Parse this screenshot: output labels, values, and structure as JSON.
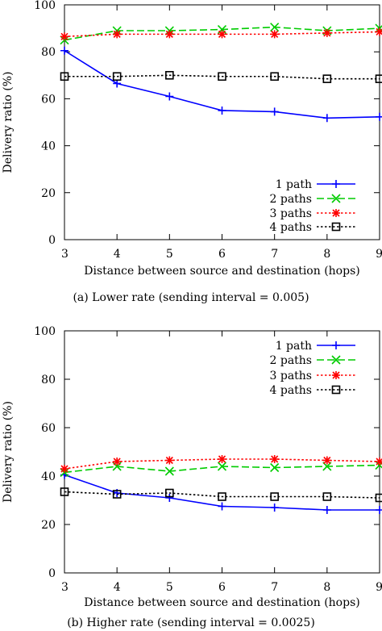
{
  "chart_data": [
    {
      "type": "line",
      "caption": "(a)  Lower rate (sending interval = 0.005)",
      "xlabel": "Distance between source and destination (hops)",
      "ylabel": "Delivery ratio (%)",
      "xlim": [
        3,
        9
      ],
      "ylim": [
        0,
        100
      ],
      "xticks": [
        3,
        4,
        5,
        6,
        7,
        8,
        9
      ],
      "yticks": [
        0,
        20,
        40,
        60,
        80,
        100
      ],
      "grid": false,
      "legend_position": "bottom-right",
      "x": [
        3,
        4,
        5,
        6,
        7,
        8,
        9
      ],
      "series": [
        {
          "name": "1 path",
          "color": "#0000ff",
          "dash": "solid",
          "marker": "plus",
          "values": [
            80.5,
            66.5,
            61,
            55,
            54.5,
            51.8,
            52.3
          ]
        },
        {
          "name": "2 paths",
          "color": "#00cc00",
          "dash": "dashed",
          "marker": "cross",
          "values": [
            85,
            89,
            89,
            89.5,
            90.5,
            89,
            90
          ]
        },
        {
          "name": "3 paths",
          "color": "#ff0000",
          "dash": "dotted",
          "marker": "star",
          "values": [
            86.5,
            87.5,
            87.5,
            87.5,
            87.5,
            88,
            88.5
          ]
        },
        {
          "name": "4 paths",
          "color": "#000000",
          "dash": "dotted",
          "marker": "square",
          "values": [
            69.5,
            69.5,
            70,
            69.5,
            69.5,
            68.5,
            68.5
          ]
        }
      ]
    },
    {
      "type": "line",
      "caption": "(b)  Higher rate (sending interval = 0.0025)",
      "xlabel": "Distance between source and destination (hops)",
      "ylabel": "Delivery ratio (%)",
      "xlim": [
        3,
        9
      ],
      "ylim": [
        0,
        100
      ],
      "xticks": [
        3,
        4,
        5,
        6,
        7,
        8,
        9
      ],
      "yticks": [
        0,
        20,
        40,
        60,
        80,
        100
      ],
      "grid": false,
      "legend_position": "top-right",
      "x": [
        3,
        4,
        5,
        6,
        7,
        8,
        9
      ],
      "series": [
        {
          "name": "1 path",
          "color": "#0000ff",
          "dash": "solid",
          "marker": "plus",
          "values": [
            40.5,
            33,
            31,
            27.5,
            27,
            26,
            26
          ]
        },
        {
          "name": "2 paths",
          "color": "#00cc00",
          "dash": "dashed",
          "marker": "cross",
          "values": [
            41.5,
            44,
            42,
            44,
            43.5,
            44,
            44.5
          ]
        },
        {
          "name": "3 paths",
          "color": "#ff0000",
          "dash": "dotted",
          "marker": "star",
          "values": [
            43,
            46,
            46.5,
            47,
            47,
            46.5,
            46
          ]
        },
        {
          "name": "4 paths",
          "color": "#000000",
          "dash": "dotted",
          "marker": "square",
          "values": [
            33.5,
            32.5,
            33,
            31.5,
            31.5,
            31.5,
            31
          ]
        }
      ]
    }
  ]
}
